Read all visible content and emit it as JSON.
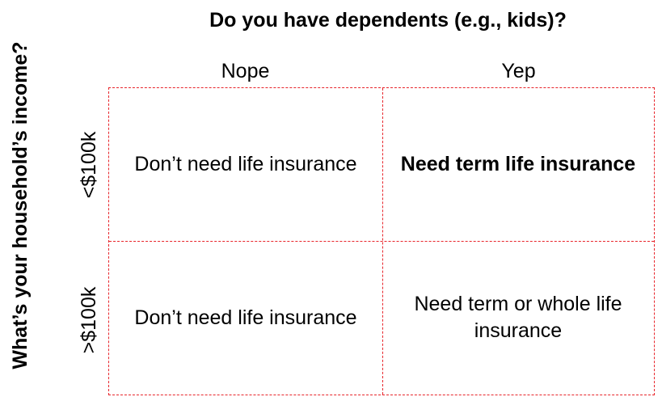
{
  "question_top": "Do you have dependents (e.g., kids)?",
  "question_left": "What’s your household’s income?",
  "columns": [
    "Nope",
    "Yep"
  ],
  "rows": [
    "<$100k",
    ">$100k"
  ],
  "cells": {
    "low_nope": "Don’t need life insurance",
    "low_yep": "Need term life insurance",
    "high_nope": "Don’t need life insurance",
    "high_yep": "Need term or whole life insurance"
  },
  "colors": {
    "grid_border": "#e8252b",
    "text": "#000000"
  }
}
